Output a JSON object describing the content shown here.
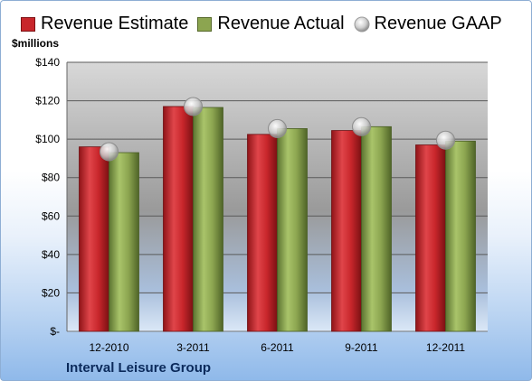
{
  "chart_data": {
    "type": "bar",
    "ylabel": "$millions",
    "ylim": [
      0,
      140
    ],
    "yticks": [
      0,
      20,
      40,
      60,
      80,
      100,
      120,
      140
    ],
    "ytick_labels": [
      "$-",
      "$20",
      "$40",
      "$60",
      "$80",
      "$100",
      "$120",
      "$140"
    ],
    "categories": [
      "12-2010",
      "3-2011",
      "6-2011",
      "9-2011",
      "12-2011"
    ],
    "series": [
      {
        "name": "Revenue Estimate",
        "kind": "bar",
        "color": "#c8262b",
        "values": [
          96,
          117,
          102.5,
          104.5,
          97
        ]
      },
      {
        "name": "Revenue Actual",
        "kind": "bar",
        "color": "#8ca550",
        "values": [
          93,
          116.5,
          105.5,
          106.5,
          99
        ]
      },
      {
        "name": "Revenue GAAP",
        "kind": "marker",
        "color": "#c0c0c0",
        "values": [
          93.5,
          117,
          105.5,
          106.5,
          99.5
        ]
      }
    ],
    "legend_position": "top",
    "grid": true,
    "footer": "Interval Leisure Group"
  }
}
